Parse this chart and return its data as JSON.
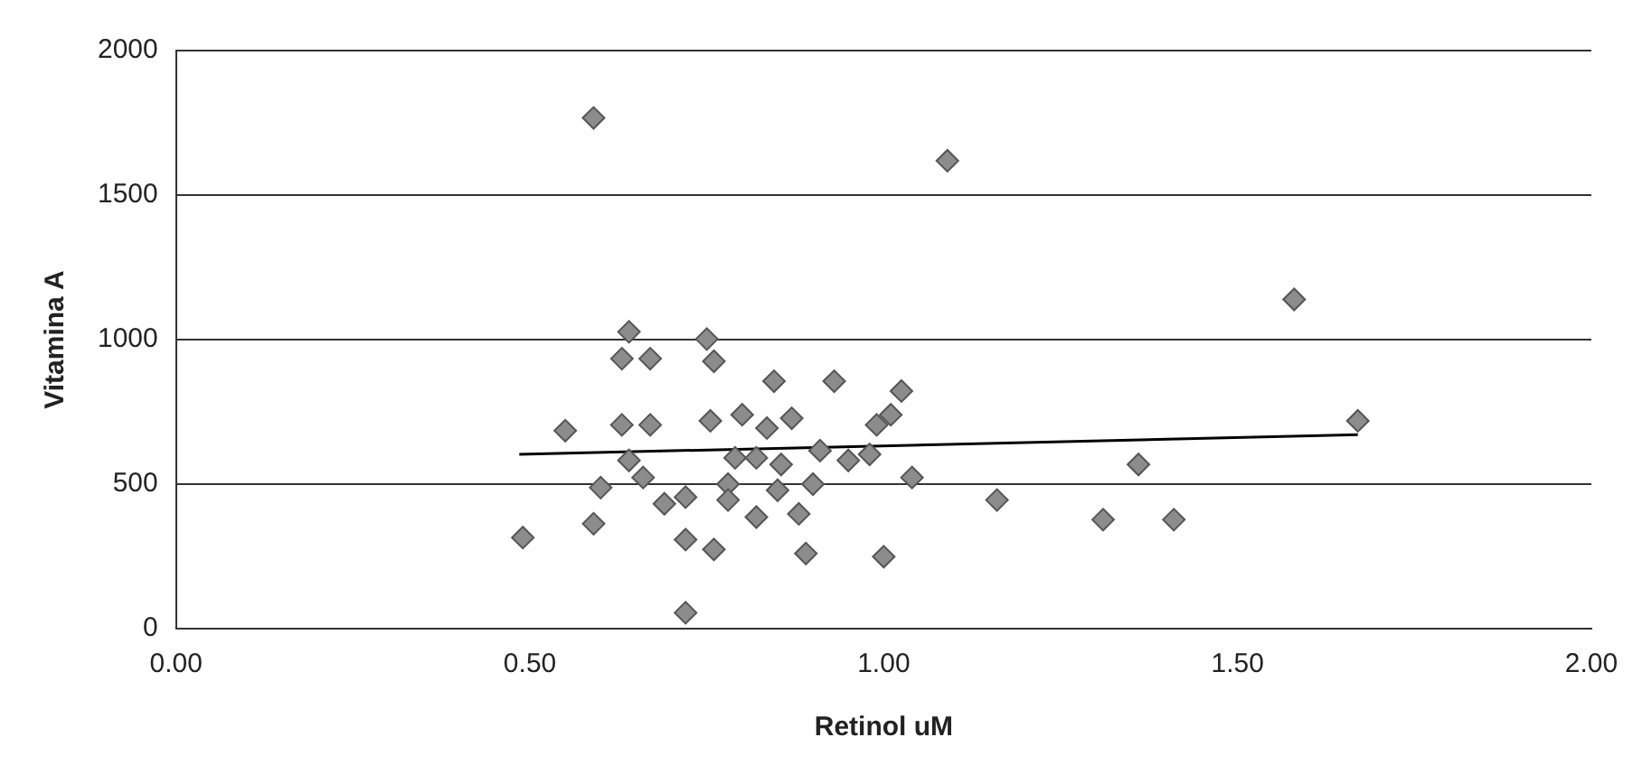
{
  "chart_data": {
    "type": "scatter",
    "xlabel": "Retinol uM",
    "ylabel": "Vitamina A",
    "xlim": [
      0,
      2
    ],
    "xticks": [
      {
        "value": 0,
        "label": "0.00"
      },
      {
        "value": 0.5,
        "label": "0.50"
      },
      {
        "value": 1,
        "label": "1.00"
      },
      {
        "value": 1.5,
        "label": "1.50"
      },
      {
        "value": 2,
        "label": "2.00"
      }
    ],
    "ylim": [
      0,
      2000
    ],
    "yticks": [
      0,
      500,
      1000,
      1500,
      2000
    ],
    "grid": "y",
    "legend": false,
    "marker": "diamond",
    "series": [
      {
        "type": "scatter",
        "color": "#8c8c8c",
        "x": [
          0.49,
          0.55,
          0.59,
          0.6,
          0.64,
          0.63,
          0.67,
          0.63,
          0.67,
          0.64,
          0.66,
          0.69,
          0.72,
          0.72,
          0.76,
          0.72,
          0.75,
          0.76,
          0.755,
          0.78,
          0.78,
          0.8,
          0.79,
          0.82,
          0.82,
          0.845,
          0.835,
          0.855,
          0.85,
          0.87,
          0.9,
          0.88,
          0.89,
          0.91,
          0.93,
          0.95,
          0.98,
          0.99,
          1.0,
          1.025,
          1.01,
          1.04,
          1.09,
          0.59,
          1.58,
          1.67,
          1.36,
          1.16,
          1.31,
          1.41
        ],
        "values": [
          315,
          685,
          363,
          488,
          1027,
          934,
          934,
          705,
          705,
          582,
          523,
          432,
          455,
          308,
          274,
          55,
          1002,
          925,
          719,
          500,
          445,
          740,
          591,
          591,
          386,
          856,
          694,
          568,
          479,
          728,
          500,
          397,
          260,
          616,
          856,
          582,
          603,
          705,
          249,
          822,
          740,
          523,
          1619,
          1767,
          1139,
          719,
          568,
          445,
          377,
          377
        ]
      },
      {
        "type": "line",
        "color": "#000000",
        "marker": "none",
        "x": [
          0.485,
          1.67
        ],
        "values": [
          603,
          671
        ]
      }
    ]
  }
}
